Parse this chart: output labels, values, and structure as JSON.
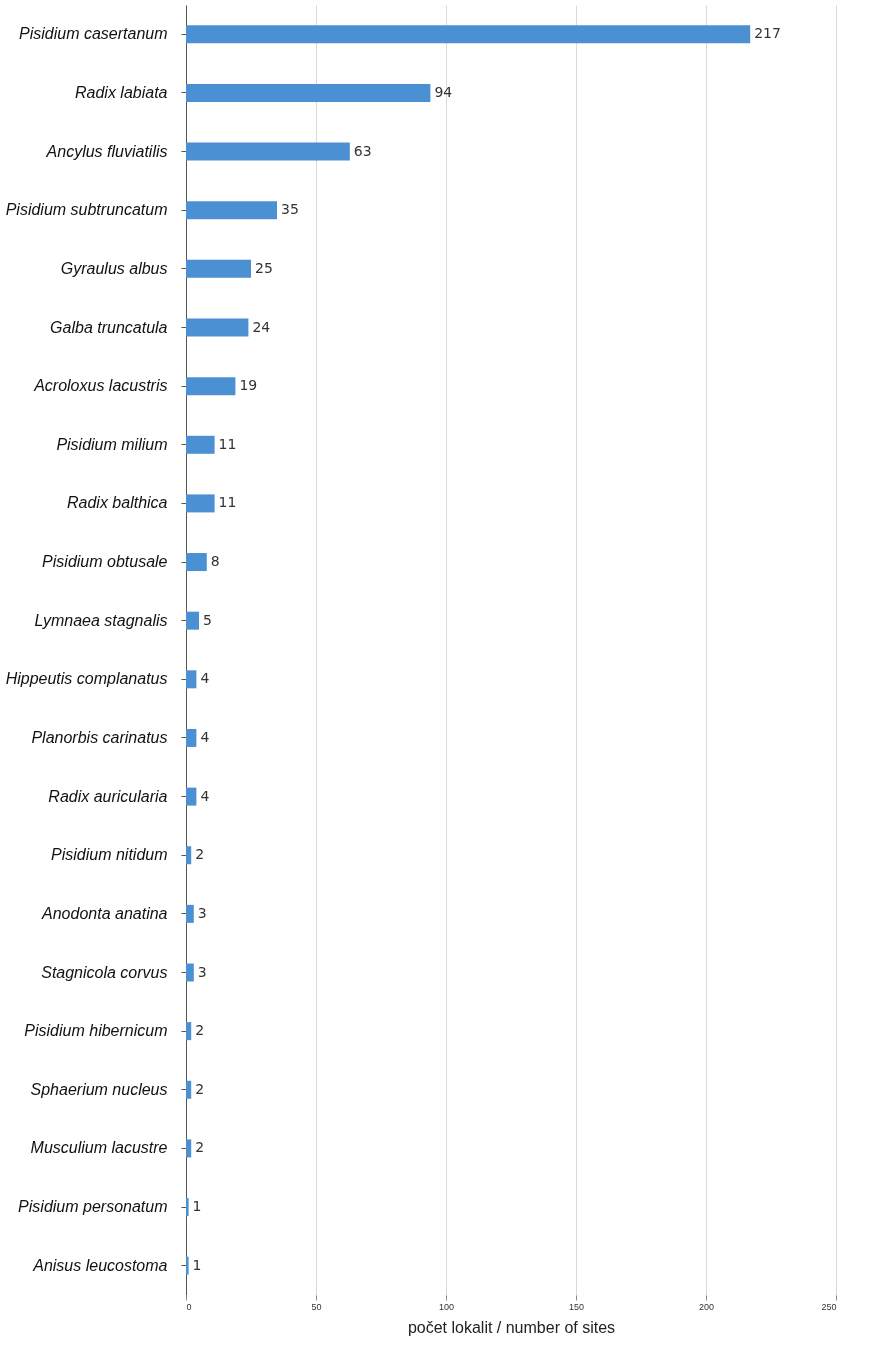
{
  "chart_data": {
    "type": "bar",
    "orientation": "horizontal",
    "categories": [
      "Pisidium casertanum",
      "Radix labiata",
      "Ancylus fluviatilis",
      "Pisidium subtruncatum",
      "Gyraulus albus",
      "Galba truncatula",
      "Acroloxus lacustris",
      "Pisidium milium",
      "Radix balthica",
      "Pisidium obtusale",
      "Lymnaea stagnalis",
      "Hippeutis complanatus",
      "Planorbis carinatus",
      "Radix auricularia",
      "Pisidium nitidum",
      "Anodonta anatina",
      "Stagnicola corvus",
      "Pisidium hibernicum",
      "Sphaerium nucleus",
      "Musculium lacustre",
      "Pisidium personatum",
      "Anisus leucostoma"
    ],
    "values": [
      217,
      94,
      63,
      35,
      25,
      24,
      19,
      11,
      11,
      8,
      5,
      4,
      4,
      4,
      2,
      3,
      3,
      2,
      2,
      2,
      1,
      1
    ],
    "color": "#4a90d2",
    "xlim": [
      0,
      250
    ],
    "xticks": [
      0,
      50,
      100,
      150,
      200,
      250
    ],
    "xlabel": "počet lokalit / number of sites",
    "grid": "x",
    "data_labels": true
  }
}
